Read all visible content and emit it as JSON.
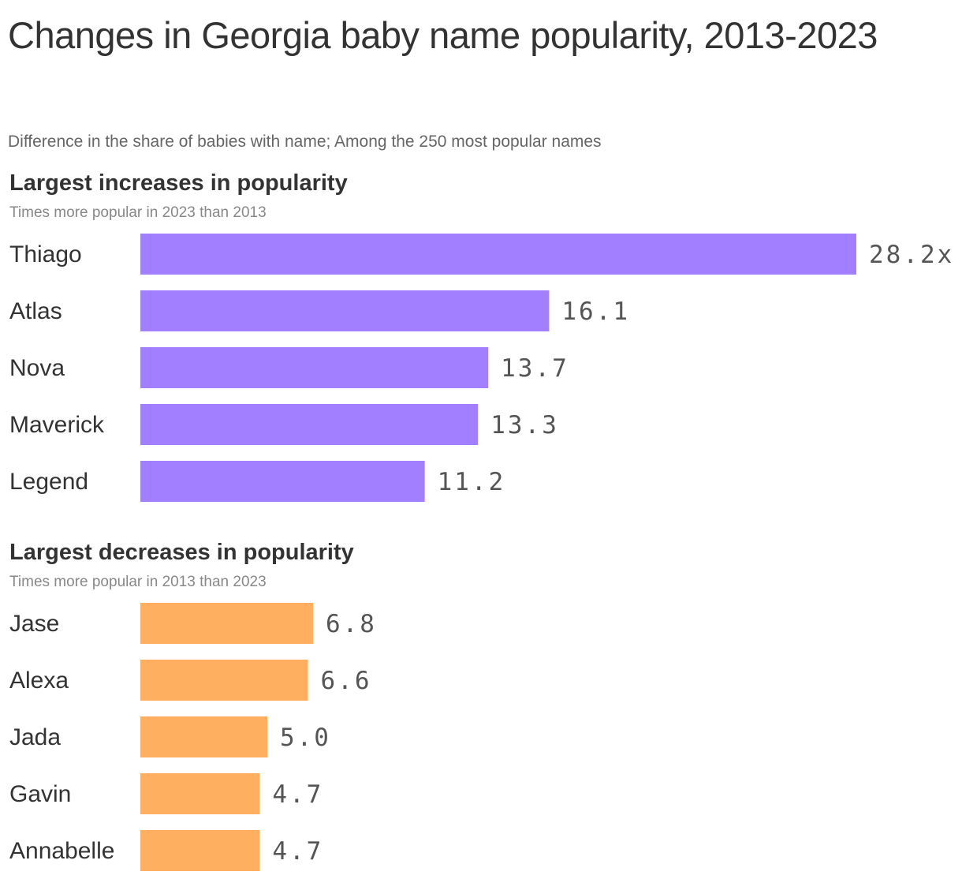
{
  "header": {
    "title": "Changes in Georgia baby name popularity, 2013-2023",
    "subtitle": "Difference in the share of babies with name; Among the 250 most popular names"
  },
  "chart_data": [
    {
      "type": "bar",
      "orientation": "horizontal",
      "title": "Largest increases in popularity",
      "subtitle": "Times more popular in 2023 than 2013",
      "categories": [
        "Thiago",
        "Atlas",
        "Nova",
        "Maverick",
        "Legend"
      ],
      "values": [
        28.2,
        16.1,
        13.7,
        13.3,
        11.2
      ],
      "value_labels": [
        "28.2x",
        "16.1",
        "13.7",
        "13.3",
        "11.2"
      ],
      "color": "#a17fff",
      "xlim": [
        0,
        28.2
      ],
      "grid": false
    },
    {
      "type": "bar",
      "orientation": "horizontal",
      "title": "Largest decreases in popularity",
      "subtitle": "Times more popular in 2013 than 2023",
      "categories": [
        "Jase",
        "Alexa",
        "Jada",
        "Gavin",
        "Annabelle"
      ],
      "values": [
        6.8,
        6.6,
        5.0,
        4.7,
        4.7
      ],
      "value_labels": [
        "6.8",
        "6.6",
        "5.0",
        "4.7",
        "4.7"
      ],
      "color": "#ffaf5f",
      "xlim": [
        0,
        28.2
      ],
      "grid": false
    }
  ]
}
